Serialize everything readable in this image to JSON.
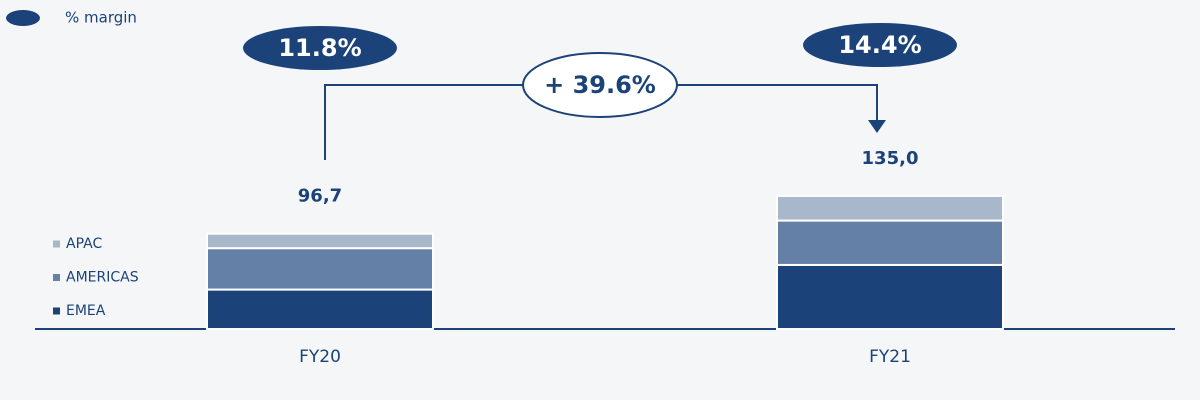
{
  "chart_data": {
    "type": "stacked_bar",
    "legend_title": "% margin",
    "categories": [
      "FY20",
      "FY21"
    ],
    "series": [
      {
        "name": "EMEA",
        "color": "#1b4279",
        "values": [
          40,
          65
        ]
      },
      {
        "name": "AMERICAS",
        "color": "#6480a6",
        "values": [
          42,
          45
        ]
      },
      {
        "name": "APAC",
        "color": "#a9b7cb",
        "values": [
          14.7,
          25
        ]
      }
    ],
    "totals": [
      96.7,
      135.0
    ],
    "total_labels": [
      "96,7",
      "135,0"
    ],
    "margins": [
      11.8,
      14.4
    ],
    "margin_labels": [
      "11.8%",
      "14.4%"
    ],
    "growth": 39.6,
    "growth_label": "+ 39.6%",
    "ylim": [
      0,
      140
    ],
    "legend": "left"
  }
}
